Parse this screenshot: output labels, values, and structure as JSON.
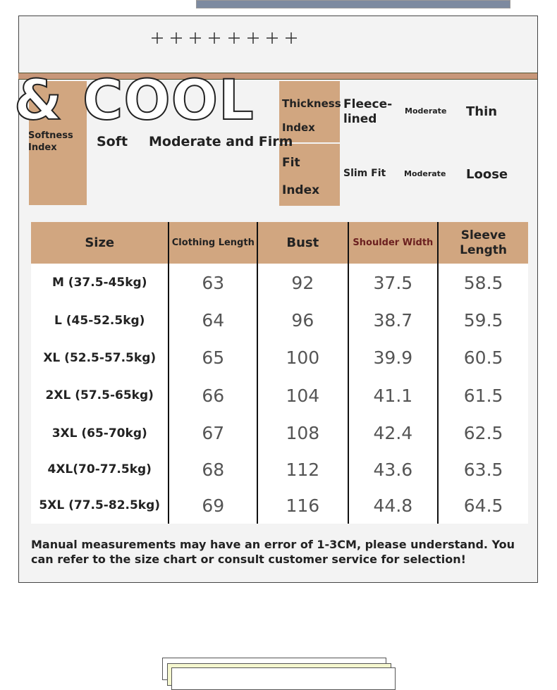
{
  "banner": {
    "headline": "& COOL"
  },
  "softness": {
    "label": "Softness Index",
    "options": [
      "Soft",
      "Moderate and Firm"
    ]
  },
  "thickness": {
    "label": "Thickness Index",
    "options": [
      "Fleece-lined",
      "Moderate",
      "Thin"
    ]
  },
  "fit": {
    "label": "Fit Index",
    "options": [
      "Slim Fit",
      "Moderate",
      "Loose"
    ]
  },
  "table": {
    "header": [
      "Size",
      "Clothing Length",
      "Bust",
      "Shoulder Width",
      "Sleeve Length"
    ],
    "rows": [
      [
        "M (37.5-45kg)",
        63,
        92,
        37.5,
        58.5
      ],
      [
        "L (45-52.5kg)",
        64,
        96,
        38.7,
        59.5
      ],
      [
        "XL (52.5-57.5kg)",
        65,
        100,
        39.9,
        60.5
      ],
      [
        "2XL (57.5-65kg)",
        66,
        104,
        41.1,
        61.5
      ],
      [
        "3XL (65-70kg)",
        67,
        108,
        42.4,
        62.5
      ],
      [
        "4XL(70-77.5kg)",
        68,
        112,
        43.6,
        63.5
      ],
      [
        "5XL (77.5-82.5kg)",
        69,
        116,
        44.8,
        64.5
      ]
    ]
  },
  "note": "Manual measurements may have an error of 1-3CM, please understand. You can refer to the size chart or consult customer service for selection!"
}
